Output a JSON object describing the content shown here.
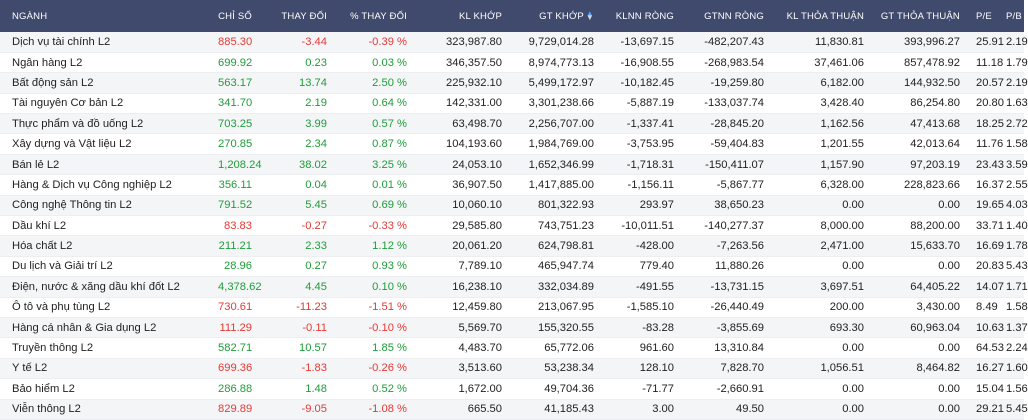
{
  "headers": {
    "sector": "NGÀNH",
    "index": "CHỈ SỐ",
    "change": "THAY ĐỔI",
    "pct_change": "% THAY ĐỔI",
    "kl_khop": "KL KHỚP",
    "gt_khop": "GT KHỚP",
    "klnn_rong": "KLNN RÒNG",
    "gtnn_rong": "GTNN RÒNG",
    "kl_thoa_thuan": "KL THỎA THUẬN",
    "gt_thoa_thuan": "GT THỎA THUẬN",
    "pe": "P/E",
    "pb": "P/B"
  },
  "sort_icon": "sort-arrows-icon",
  "colors": {
    "header_bg": "#3f4a6c",
    "up": "#1f9d3a",
    "down": "#e53935"
  },
  "rows": [
    {
      "name": "Dịch vụ tài chính L2",
      "index": "885.30",
      "change": "-3.44",
      "pct": "-0.39 %",
      "kl_khop": "323,987.80",
      "gt_khop": "9,729,014.28",
      "klnn": "-13,697.15",
      "gtnn": "-482,207.43",
      "kl_tt": "11,830.81",
      "gt_tt": "393,996.27",
      "pe": "25.91",
      "pb": "2.19",
      "dir": "neg"
    },
    {
      "name": "Ngân hàng L2",
      "index": "699.92",
      "change": "0.23",
      "pct": "0.03 %",
      "kl_khop": "346,357.50",
      "gt_khop": "8,974,773.13",
      "klnn": "-16,908.55",
      "gtnn": "-268,983.54",
      "kl_tt": "37,461.06",
      "gt_tt": "857,478.92",
      "pe": "11.18",
      "pb": "1.79",
      "dir": "pos"
    },
    {
      "name": "Bất động sản L2",
      "index": "563.17",
      "change": "13.74",
      "pct": "2.50 %",
      "kl_khop": "225,932.10",
      "gt_khop": "5,499,172.97",
      "klnn": "-10,182.45",
      "gtnn": "-19,259.80",
      "kl_tt": "6,182.00",
      "gt_tt": "144,932.50",
      "pe": "20.57",
      "pb": "2.19",
      "dir": "pos"
    },
    {
      "name": "Tài nguyên Cơ bản L2",
      "index": "341.70",
      "change": "2.19",
      "pct": "0.64 %",
      "kl_khop": "142,331.00",
      "gt_khop": "3,301,238.66",
      "klnn": "-5,887.19",
      "gtnn": "-133,037.74",
      "kl_tt": "3,428.40",
      "gt_tt": "86,254.80",
      "pe": "20.80",
      "pb": "1.63",
      "dir": "pos"
    },
    {
      "name": "Thực phẩm và đồ uống L2",
      "index": "703.25",
      "change": "3.99",
      "pct": "0.57 %",
      "kl_khop": "63,498.70",
      "gt_khop": "2,256,707.00",
      "klnn": "-1,337.41",
      "gtnn": "-28,845.20",
      "kl_tt": "1,162.56",
      "gt_tt": "47,413.68",
      "pe": "18.25",
      "pb": "2.72",
      "dir": "pos"
    },
    {
      "name": "Xây dựng và Vật liệu L2",
      "index": "270.85",
      "change": "2.34",
      "pct": "0.87 %",
      "kl_khop": "104,193.60",
      "gt_khop": "1,984,769.00",
      "klnn": "-3,753.95",
      "gtnn": "-59,404.83",
      "kl_tt": "1,201.55",
      "gt_tt": "42,013.64",
      "pe": "11.76",
      "pb": "1.58",
      "dir": "pos"
    },
    {
      "name": "Bán lẻ L2",
      "index": "1,208.24",
      "change": "38.02",
      "pct": "3.25 %",
      "kl_khop": "24,053.10",
      "gt_khop": "1,652,346.99",
      "klnn": "-1,718.31",
      "gtnn": "-150,411.07",
      "kl_tt": "1,157.90",
      "gt_tt": "97,203.19",
      "pe": "23.43",
      "pb": "3.59",
      "dir": "pos"
    },
    {
      "name": "Hàng & Dịch vụ Công nghiệp L2",
      "index": "356.11",
      "change": "0.04",
      "pct": "0.01 %",
      "kl_khop": "36,907.50",
      "gt_khop": "1,417,885.00",
      "klnn": "-1,156.11",
      "gtnn": "-5,867.77",
      "kl_tt": "6,328.00",
      "gt_tt": "228,823.66",
      "pe": "16.37",
      "pb": "2.55",
      "dir": "pos"
    },
    {
      "name": "Công nghệ Thông tin L2",
      "index": "791.52",
      "change": "5.45",
      "pct": "0.69 %",
      "kl_khop": "10,060.10",
      "gt_khop": "801,322.93",
      "klnn": "293.97",
      "gtnn": "38,650.23",
      "kl_tt": "0.00",
      "gt_tt": "0.00",
      "pe": "19.65",
      "pb": "4.03",
      "dir": "pos"
    },
    {
      "name": "Dầu khí L2",
      "index": "83.83",
      "change": "-0.27",
      "pct": "-0.33 %",
      "kl_khop": "29,585.80",
      "gt_khop": "743,751.23",
      "klnn": "-10,011.51",
      "gtnn": "-140,277.37",
      "kl_tt": "8,000.00",
      "gt_tt": "88,200.00",
      "pe": "33.71",
      "pb": "1.40",
      "dir": "neg"
    },
    {
      "name": "Hóa chất L2",
      "index": "211.21",
      "change": "2.33",
      "pct": "1.12 %",
      "kl_khop": "20,061.20",
      "gt_khop": "624,798.81",
      "klnn": "-428.00",
      "gtnn": "-7,263.56",
      "kl_tt": "2,471.00",
      "gt_tt": "15,633.70",
      "pe": "16.69",
      "pb": "1.78",
      "dir": "pos"
    },
    {
      "name": "Du lịch và Giải trí L2",
      "index": "28.96",
      "change": "0.27",
      "pct": "0.93 %",
      "kl_khop": "7,789.10",
      "gt_khop": "465,947.74",
      "klnn": "779.40",
      "gtnn": "11,880.26",
      "kl_tt": "0.00",
      "gt_tt": "0.00",
      "pe": "20.83",
      "pb": "5.43",
      "dir": "pos"
    },
    {
      "name": "Điện, nước & xăng dầu khí đốt L2",
      "index": "4,378.62",
      "change": "4.45",
      "pct": "0.10 %",
      "kl_khop": "16,238.10",
      "gt_khop": "332,034.89",
      "klnn": "-491.55",
      "gtnn": "-13,731.15",
      "kl_tt": "3,697.51",
      "gt_tt": "64,405.22",
      "pe": "14.07",
      "pb": "1.71",
      "dir": "pos"
    },
    {
      "name": "Ô tô và phụ tùng L2",
      "index": "730.61",
      "change": "-11.23",
      "pct": "-1.51 %",
      "kl_khop": "12,459.80",
      "gt_khop": "213,067.95",
      "klnn": "-1,585.10",
      "gtnn": "-26,440.49",
      "kl_tt": "200.00",
      "gt_tt": "3,430.00",
      "pe": "8.49",
      "pb": "1.58",
      "dir": "neg"
    },
    {
      "name": "Hàng cá nhân & Gia dụng L2",
      "index": "111.29",
      "change": "-0.11",
      "pct": "-0.10 %",
      "kl_khop": "5,569.70",
      "gt_khop": "155,320.55",
      "klnn": "-83.28",
      "gtnn": "-3,855.69",
      "kl_tt": "693.30",
      "gt_tt": "60,963.04",
      "pe": "10.63",
      "pb": "1.37",
      "dir": "neg"
    },
    {
      "name": "Truyền thông L2",
      "index": "582.71",
      "change": "10.57",
      "pct": "1.85 %",
      "kl_khop": "4,483.70",
      "gt_khop": "65,772.06",
      "klnn": "961.60",
      "gtnn": "13,310.84",
      "kl_tt": "0.00",
      "gt_tt": "0.00",
      "pe": "64.53",
      "pb": "2.24",
      "dir": "pos"
    },
    {
      "name": "Y tế L2",
      "index": "699.36",
      "change": "-1.83",
      "pct": "-0.26 %",
      "kl_khop": "3,513.60",
      "gt_khop": "53,238.34",
      "klnn": "128.10",
      "gtnn": "7,828.70",
      "kl_tt": "1,056.51",
      "gt_tt": "8,464.82",
      "pe": "16.27",
      "pb": "1.60",
      "dir": "neg"
    },
    {
      "name": "Bảo hiểm L2",
      "index": "286.88",
      "change": "1.48",
      "pct": "0.52 %",
      "kl_khop": "1,672.00",
      "gt_khop": "49,704.36",
      "klnn": "-71.77",
      "gtnn": "-2,660.91",
      "kl_tt": "0.00",
      "gt_tt": "0.00",
      "pe": "15.04",
      "pb": "1.56",
      "dir": "pos"
    },
    {
      "name": "Viễn thông L2",
      "index": "829.89",
      "change": "-9.05",
      "pct": "-1.08 %",
      "kl_khop": "665.50",
      "gt_khop": "41,185.43",
      "klnn": "3.00",
      "gtnn": "49.50",
      "kl_tt": "0.00",
      "gt_tt": "0.00",
      "pe": "29.21",
      "pb": "5.45",
      "dir": "neg"
    }
  ]
}
